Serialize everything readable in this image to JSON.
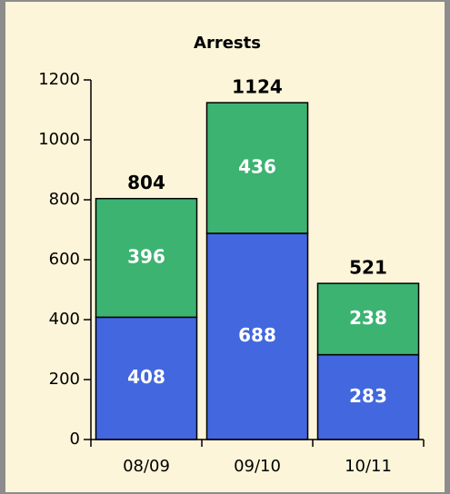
{
  "chart_data": {
    "type": "stacked_bar",
    "title": "Arrests",
    "categories": [
      "08/09",
      "09/10",
      "10/11"
    ],
    "series": [
      {
        "color": "#4267de",
        "values": [
          408,
          688,
          283
        ]
      },
      {
        "color": "#3cb371",
        "values": [
          396,
          436,
          238
        ]
      }
    ],
    "totals": [
      804,
      1124,
      521
    ],
    "ylim": [
      0,
      1200
    ],
    "yticks": [
      0,
      200,
      400,
      600,
      800,
      1000,
      1200
    ],
    "grid": false
  }
}
